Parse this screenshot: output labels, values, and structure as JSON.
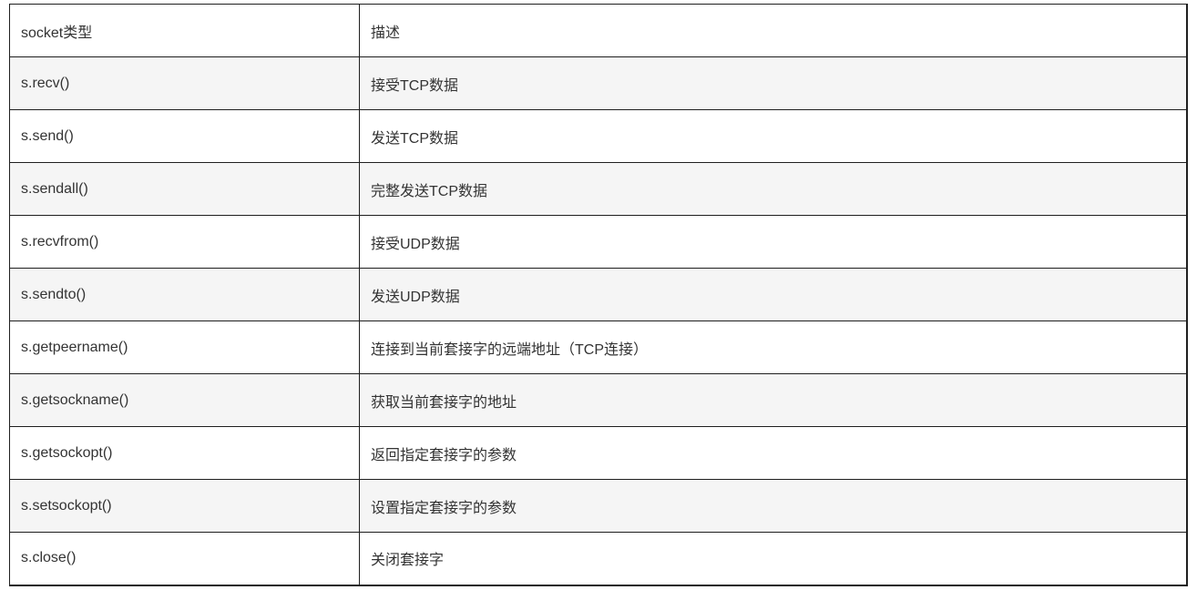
{
  "colors": {
    "border": "#1f1f1f",
    "text": "#333333",
    "stripe_background": "#f5f5f5",
    "row_background": "#ffffff"
  },
  "table": {
    "columns": [
      "socket类型",
      "描述"
    ],
    "rows": [
      [
        "s.recv()",
        "接受TCP数据"
      ],
      [
        "s.send()",
        "发送TCP数据"
      ],
      [
        "s.sendall()",
        "完整发送TCP数据"
      ],
      [
        "s.recvfrom()",
        "接受UDP数据"
      ],
      [
        "s.sendto()",
        "发送UDP数据"
      ],
      [
        "s.getpeername()",
        "连接到当前套接字的远端地址（TCP连接）"
      ],
      [
        "s.getsockname()",
        "获取当前套接字的地址"
      ],
      [
        "s.getsockopt()",
        "返回指定套接字的参数"
      ],
      [
        "s.setsockopt()",
        "设置指定套接字的参数"
      ],
      [
        "s.close()",
        "关闭套接字"
      ]
    ]
  }
}
